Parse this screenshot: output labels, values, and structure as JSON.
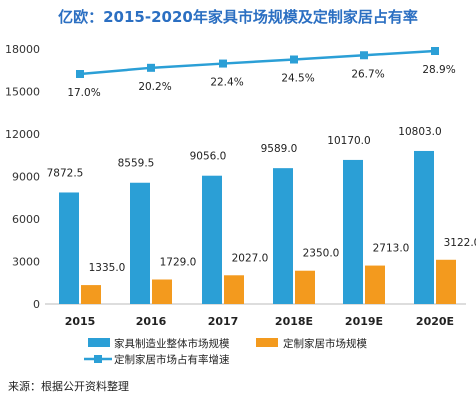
{
  "title": "亿欧：2015-2020年家具市场规模及定制家居占有率",
  "source": "来源：根据公开资料整理",
  "chart_data": {
    "type": "bar",
    "categories": [
      "2015",
      "2016",
      "2017",
      "2018E",
      "2019E",
      "2020E"
    ],
    "ylim": [
      0,
      18000
    ],
    "yticks": [
      "0",
      "3000",
      "6000",
      "9000",
      "12000",
      "15000",
      "18000"
    ],
    "grid": false,
    "legend_position": "bottom",
    "series": [
      {
        "name": "家具制造业整体市场规模",
        "kind": "bar",
        "color": "#2b9fd6",
        "values": [
          7872.5,
          8559.5,
          9056.0,
          9589.0,
          10170.0,
          10803.0
        ],
        "labels": [
          "7872.5",
          "8559.5",
          "9056.0",
          "9589.0",
          "10170.0",
          "10803.0"
        ]
      },
      {
        "name": "定制家居市场规模",
        "kind": "bar",
        "color": "#f39a1e",
        "values": [
          1335.0,
          1729.0,
          2027.0,
          2350.0,
          2713.0,
          3122.0
        ],
        "labels": [
          "1335.0",
          "1729.0",
          "2027.0",
          "2350.0",
          "2713.0",
          "3122.0"
        ]
      },
      {
        "name": "定制家居市场占有率增速",
        "kind": "line",
        "color": "#2b9fd6",
        "values": [
          17.0,
          20.2,
          22.4,
          24.5,
          26.7,
          28.9
        ],
        "labels": [
          "17.0%",
          "20.2%",
          "22.4%",
          "24.5%",
          "26.7%",
          "28.9%"
        ]
      }
    ]
  }
}
